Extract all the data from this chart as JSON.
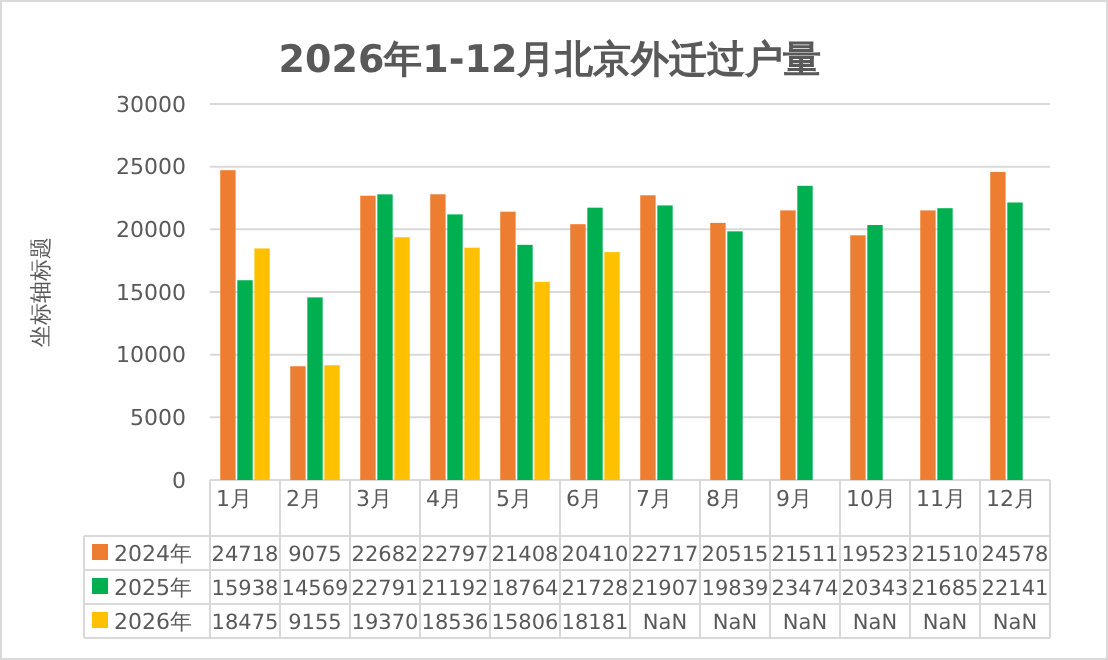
{
  "chart_data": {
    "type": "bar",
    "title": "2026年1-12月北京外迁过户量",
    "ylabel": "坐标轴标题",
    "categories": [
      "1月",
      "2月",
      "3月",
      "4月",
      "5月",
      "6月",
      "7月",
      "8月",
      "9月",
      "10月",
      "11月",
      "12月"
    ],
    "series": [
      {
        "name": "2024年",
        "color": "#ed7d31",
        "values": [
          24718,
          9075,
          22682,
          22797,
          21408,
          20410,
          22717,
          20515,
          21511,
          19523,
          21510,
          24578
        ],
        "value_labels": [
          "24718",
          "9075",
          "22682",
          "22797",
          "21408",
          "20410",
          "22717",
          "20515",
          "21511",
          "19523",
          "21510",
          "24578"
        ]
      },
      {
        "name": "2025年",
        "color": "#00b050",
        "values": [
          15938,
          14569,
          22791,
          21192,
          18764,
          21728,
          21907,
          19839,
          23474,
          20343,
          21685,
          22141
        ],
        "value_labels": [
          "15938",
          "14569",
          "22791",
          "21192",
          "18764",
          "21728",
          "21907",
          "19839",
          "23474",
          "20343",
          "21685",
          "22141"
        ]
      },
      {
        "name": "2026年",
        "color": "#ffc000",
        "values": [
          18475,
          9155,
          19370,
          18536,
          15806,
          18181,
          null,
          null,
          null,
          null,
          null,
          null
        ],
        "value_labels": [
          "18475",
          "9155",
          "19370",
          "18536",
          "15806",
          "18181",
          "NaN",
          "NaN",
          "NaN",
          "NaN",
          "NaN",
          "NaN"
        ]
      }
    ],
    "ylim": [
      0,
      30000
    ],
    "yticks": [
      0,
      5000,
      10000,
      15000,
      20000,
      25000,
      30000
    ],
    "grid": "y",
    "legend": "bottom"
  }
}
